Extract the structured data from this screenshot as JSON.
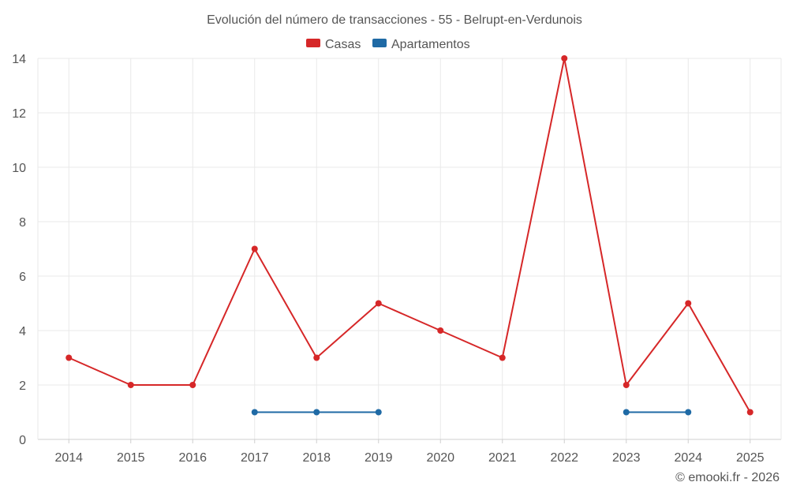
{
  "chart_data": {
    "type": "line",
    "title": "Evolución del número de transacciones - 55 - Belrupt-en-Verdunois",
    "categories": [
      "2014",
      "2015",
      "2016",
      "2017",
      "2018",
      "2019",
      "2020",
      "2021",
      "2022",
      "2023",
      "2024",
      "2025"
    ],
    "y_ticks": [
      "0",
      "2",
      "4",
      "6",
      "8",
      "10",
      "12",
      "14"
    ],
    "ylim": [
      0,
      14
    ],
    "xlabel": "",
    "ylabel": "",
    "grid": true,
    "legend_position": "top-center",
    "series": [
      {
        "name": "Casas",
        "color": "#d62728",
        "values": [
          3,
          2,
          2,
          7,
          3,
          5,
          4,
          3,
          14,
          2,
          5,
          1
        ]
      },
      {
        "name": "Apartamentos",
        "color": "#1f6aa5",
        "values": [
          null,
          null,
          null,
          1,
          1,
          1,
          null,
          null,
          null,
          1,
          1,
          null
        ]
      }
    ]
  },
  "copyright": "© emooki.fr - 2026"
}
